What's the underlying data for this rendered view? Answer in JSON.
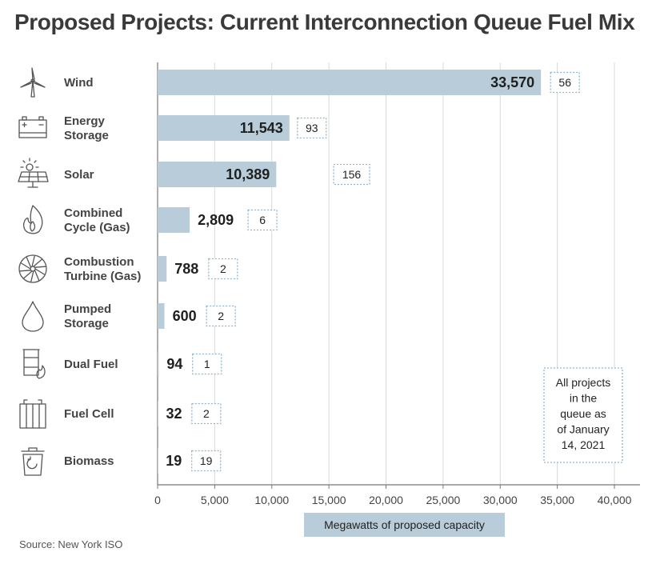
{
  "title": "Proposed Projects: Current Interconnection Queue Fuel Mix",
  "source": "Source: New York ISO",
  "note_lines": [
    "All projects",
    "in the",
    "queue as",
    "of January",
    "14, 2021"
  ],
  "chart_data": {
    "type": "bar",
    "orientation": "horizontal",
    "title": "Proposed Projects: Current Interconnection Queue Fuel Mix",
    "xlabel": "Megawatts of proposed capacity",
    "ylabel": "",
    "xlim": [
      0,
      42000
    ],
    "xticks": [
      0,
      5000,
      10000,
      15000,
      20000,
      25000,
      30000,
      35000,
      40000
    ],
    "xtick_labels": [
      "0",
      "5,000",
      "10,000",
      "15,000",
      "20,000",
      "25,000",
      "30,000",
      "35,000",
      "40,000"
    ],
    "grid": "vertical",
    "categories": [
      [
        "Wind"
      ],
      [
        "Energy",
        "Storage"
      ],
      [
        "Solar"
      ],
      [
        "Combined",
        "Cycle (Gas)"
      ],
      [
        "Combustion",
        "Turbine (Gas)"
      ],
      [
        "Pumped",
        "Storage"
      ],
      [
        "Dual Fuel"
      ],
      [
        "Fuel Cell"
      ],
      [
        "Biomass"
      ]
    ],
    "icons": [
      "wind-turbine-icon",
      "battery-icon",
      "solar-panel-icon",
      "flame-icon",
      "turbine-icon",
      "water-drop-icon",
      "fuel-drum-icon",
      "fuel-cell-icon",
      "biomass-bin-icon"
    ],
    "values": [
      33570,
      11543,
      10389,
      2809,
      788,
      600,
      94,
      32,
      19
    ],
    "value_labels": [
      "33,570",
      "11,543",
      "10,389",
      "2,809",
      "788",
      "600",
      "94",
      "32",
      "19"
    ],
    "value_label_inside": [
      true,
      true,
      true,
      false,
      false,
      false,
      false,
      false,
      false
    ],
    "project_counts": [
      "56",
      "93",
      "156",
      "6",
      "2",
      "2",
      "1",
      "2",
      "19"
    ],
    "bar_color": "#b8cdd9",
    "box_border_color": "#8fb4cc",
    "grid_color": "#d9d9d9"
  }
}
